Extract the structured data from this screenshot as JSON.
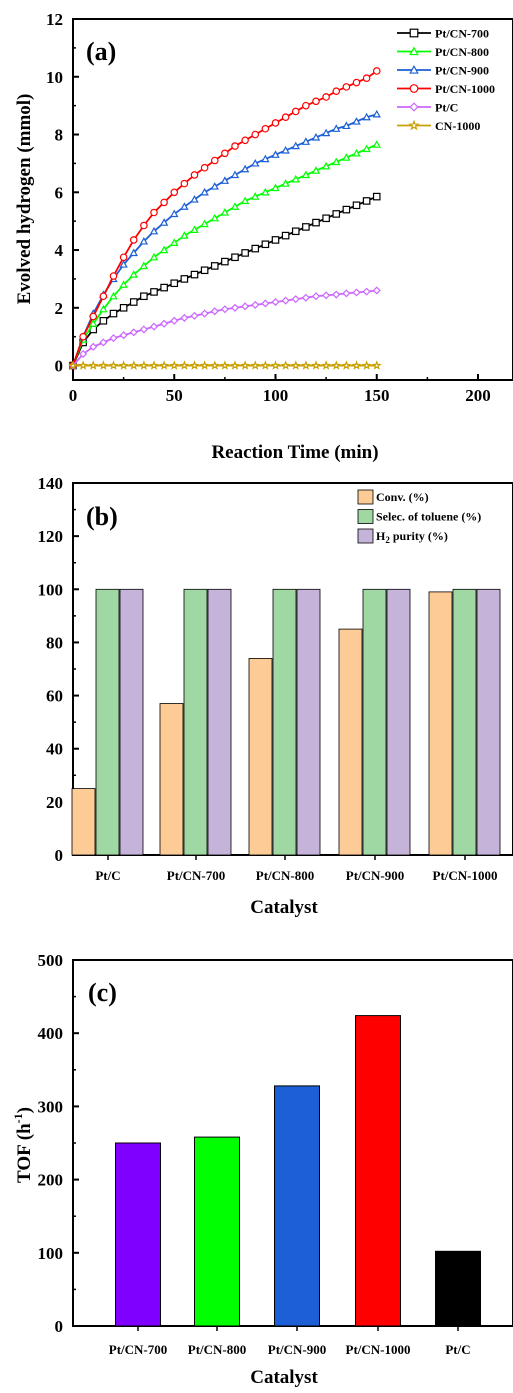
{
  "chart_data": [
    {
      "panel": "(a)",
      "type": "line",
      "xlabel": "Reaction Time (min)",
      "ylabel": "Evolved hydrogen (mmol)",
      "xlim": [
        0,
        210
      ],
      "ylim": [
        -0.5,
        12
      ],
      "xticks": [
        0,
        50,
        100,
        150,
        200
      ],
      "yticks": [
        0,
        2,
        4,
        6,
        8,
        10,
        12
      ],
      "legend_position": "top-right",
      "x": [
        0,
        5,
        10,
        15,
        20,
        25,
        30,
        35,
        40,
        45,
        50,
        55,
        60,
        65,
        70,
        75,
        80,
        85,
        90,
        95,
        100,
        105,
        110,
        115,
        120,
        125,
        130,
        135,
        140,
        145,
        150
      ],
      "series": [
        {
          "name": "Pt/CN-700",
          "color": "#000000",
          "marker": "square",
          "values": [
            0,
            0.8,
            1.25,
            1.55,
            1.8,
            2.0,
            2.2,
            2.4,
            2.55,
            2.7,
            2.85,
            3.0,
            3.15,
            3.3,
            3.45,
            3.6,
            3.75,
            3.9,
            4.05,
            4.2,
            4.35,
            4.5,
            4.65,
            4.8,
            4.95,
            5.1,
            5.25,
            5.4,
            5.55,
            5.7,
            5.85
          ]
        },
        {
          "name": "Pt/CN-800",
          "color": "#00ff00",
          "marker": "triangle",
          "values": [
            0,
            0.9,
            1.45,
            1.95,
            2.4,
            2.8,
            3.15,
            3.45,
            3.75,
            4.0,
            4.25,
            4.5,
            4.7,
            4.9,
            5.1,
            5.3,
            5.5,
            5.7,
            5.85,
            6.0,
            6.15,
            6.3,
            6.45,
            6.6,
            6.75,
            6.9,
            7.05,
            7.2,
            7.35,
            7.5,
            7.65
          ]
        },
        {
          "name": "Pt/CN-900",
          "color": "#1c5fd6",
          "marker": "triangle",
          "values": [
            0,
            1.0,
            1.8,
            2.45,
            3.0,
            3.5,
            3.9,
            4.3,
            4.65,
            4.95,
            5.25,
            5.5,
            5.75,
            6.0,
            6.2,
            6.4,
            6.6,
            6.8,
            7.0,
            7.15,
            7.3,
            7.45,
            7.6,
            7.75,
            7.9,
            8.05,
            8.2,
            8.3,
            8.45,
            8.6,
            8.7
          ]
        },
        {
          "name": "Pt/CN-1000",
          "color": "#ff0000",
          "marker": "circle",
          "values": [
            0,
            1.0,
            1.7,
            2.4,
            3.1,
            3.75,
            4.35,
            4.85,
            5.3,
            5.65,
            6.0,
            6.3,
            6.6,
            6.85,
            7.1,
            7.35,
            7.6,
            7.8,
            8.0,
            8.2,
            8.4,
            8.6,
            8.8,
            9.0,
            9.15,
            9.3,
            9.5,
            9.65,
            9.8,
            9.95,
            10.2
          ]
        },
        {
          "name": "Pt/C",
          "color": "#cc66ff",
          "marker": "diamond",
          "values": [
            0,
            0.4,
            0.65,
            0.8,
            0.95,
            1.05,
            1.15,
            1.25,
            1.35,
            1.45,
            1.55,
            1.65,
            1.72,
            1.8,
            1.88,
            1.95,
            2.0,
            2.05,
            2.1,
            2.15,
            2.2,
            2.25,
            2.3,
            2.35,
            2.4,
            2.43,
            2.46,
            2.5,
            2.53,
            2.56,
            2.6
          ]
        },
        {
          "name": "CN-1000",
          "color": "#c8a000",
          "marker": "star",
          "values": [
            0,
            0,
            0,
            0,
            0,
            0,
            0,
            0,
            0,
            0,
            0,
            0,
            0,
            0,
            0,
            0,
            0,
            0,
            0,
            0,
            0,
            0,
            0,
            0,
            0,
            0,
            0,
            0,
            0,
            0,
            0
          ]
        }
      ]
    },
    {
      "panel": "(b)",
      "type": "bar",
      "xlabel": "Catalyst",
      "ylabel": "",
      "ylim": [
        0,
        140
      ],
      "yticks": [
        0,
        20,
        40,
        60,
        80,
        100,
        120,
        140
      ],
      "legend_position": "top-right",
      "categories": [
        "Pt/C",
        "Pt/CN-700",
        "Pt/CN-800",
        "Pt/CN-900",
        "Pt/CN-1000"
      ],
      "series": [
        {
          "name": "Conv. (%)",
          "color": "#fdcb96",
          "values": [
            25,
            57,
            74,
            85,
            99
          ]
        },
        {
          "name": "Selec. of toluene (%)",
          "color": "#9fd8a3",
          "values": [
            100,
            100,
            100,
            100,
            100
          ]
        },
        {
          "name": "H2 purity (%)",
          "name_main": "H",
          "name_sub": "2",
          "name_rest": " purity (%)",
          "color": "#c5b3da",
          "values": [
            100,
            100,
            100,
            100,
            100
          ]
        }
      ]
    },
    {
      "panel": "(c)",
      "type": "bar",
      "xlabel": "Catalyst",
      "ylabel_main": "TOF (h",
      "ylabel_sup": "-1",
      "ylabel_close": ")",
      "ylim": [
        0,
        500
      ],
      "yticks": [
        0,
        100,
        200,
        300,
        400,
        500
      ],
      "categories": [
        "Pt/CN-700",
        "Pt/CN-800",
        "Pt/CN-900",
        "Pt/CN-1000",
        "Pt/C"
      ],
      "values": [
        250,
        258,
        328,
        424,
        102
      ],
      "colors": [
        "#8000ff",
        "#00ff00",
        "#1c5fd6",
        "#ff0000",
        "#000000"
      ]
    }
  ]
}
